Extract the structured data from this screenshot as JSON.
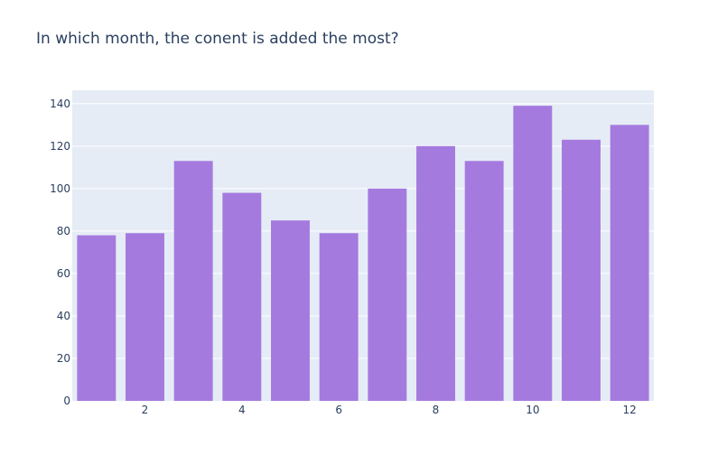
{
  "chart_data": {
    "type": "bar",
    "title": "In which month, the conent is added the most?",
    "xlabel": "",
    "ylabel": "",
    "categories": [
      1,
      2,
      3,
      4,
      5,
      6,
      7,
      8,
      9,
      10,
      11,
      12
    ],
    "values": [
      78,
      79,
      113,
      98,
      85,
      79,
      100,
      120,
      113,
      139,
      123,
      130
    ],
    "xticks": [
      2,
      4,
      6,
      8,
      10,
      12
    ],
    "yticks": [
      0,
      20,
      40,
      60,
      80,
      100,
      120,
      140
    ],
    "xlim": [
      0.5,
      12.5
    ],
    "ylim": [
      0,
      146.3
    ],
    "grid": true,
    "colors": {
      "bar": "#a57adf",
      "plot_bg": "#e5ecf6",
      "grid": "#ffffff",
      "text": "#2a3f5f"
    }
  }
}
